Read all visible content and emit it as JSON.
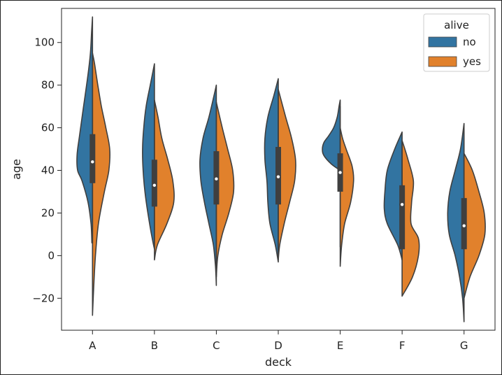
{
  "chart_data": {
    "type": "violin",
    "split": true,
    "title": "",
    "xlabel": "deck",
    "ylabel": "age",
    "categories": [
      "A",
      "B",
      "C",
      "D",
      "E",
      "F",
      "G"
    ],
    "ylim": [
      -35,
      116
    ],
    "yticks": [
      -20,
      0,
      20,
      40,
      60,
      80,
      100
    ],
    "ytick_labels": [
      "−20",
      "0",
      "20",
      "40",
      "60",
      "80",
      "100"
    ],
    "grid": false,
    "legend": {
      "title": "alive",
      "location": "top-right",
      "entries": [
        {
          "label": "no",
          "color": "#3274a1"
        },
        {
          "label": "yes",
          "color": "#e1812c"
        }
      ]
    },
    "series": [
      {
        "name": "no",
        "color": "#3274a1",
        "violins": [
          {
            "category": "A",
            "min": 6,
            "max": 112,
            "profile": [
              [
                6,
                0.02
              ],
              [
                15,
                0.05
              ],
              [
                25,
                0.15
              ],
              [
                35,
                0.35
              ],
              [
                40,
                0.5
              ],
              [
                47,
                0.52
              ],
              [
                55,
                0.45
              ],
              [
                65,
                0.35
              ],
              [
                75,
                0.25
              ],
              [
                85,
                0.15
              ],
              [
                95,
                0.07
              ],
              [
                105,
                0.03
              ],
              [
                112,
                0.0
              ]
            ]
          },
          {
            "category": "B",
            "min": 3,
            "max": 90,
            "profile": [
              [
                3,
                0.0
              ],
              [
                10,
                0.1
              ],
              [
                20,
                0.22
              ],
              [
                30,
                0.32
              ],
              [
                40,
                0.38
              ],
              [
                50,
                0.4
              ],
              [
                60,
                0.36
              ],
              [
                70,
                0.28
              ],
              [
                80,
                0.14
              ],
              [
                90,
                0.0
              ]
            ]
          },
          {
            "category": "C",
            "min": -14,
            "max": 80,
            "profile": [
              [
                -14,
                0.0
              ],
              [
                -5,
                0.03
              ],
              [
                5,
                0.1
              ],
              [
                15,
                0.25
              ],
              [
                25,
                0.4
              ],
              [
                35,
                0.52
              ],
              [
                45,
                0.55
              ],
              [
                55,
                0.45
              ],
              [
                65,
                0.25
              ],
              [
                75,
                0.08
              ],
              [
                80,
                0.0
              ]
            ]
          },
          {
            "category": "D",
            "min": -3,
            "max": 83,
            "profile": [
              [
                -3,
                0.0
              ],
              [
                5,
                0.1
              ],
              [
                15,
                0.28
              ],
              [
                25,
                0.35
              ],
              [
                35,
                0.38
              ],
              [
                45,
                0.45
              ],
              [
                55,
                0.45
              ],
              [
                65,
                0.35
              ],
              [
                75,
                0.15
              ],
              [
                83,
                0.0
              ]
            ]
          },
          {
            "category": "E",
            "min": 40,
            "max": 73,
            "profile": [
              [
                40,
                0.0
              ],
              [
                43,
                0.3
              ],
              [
                47,
                0.55
              ],
              [
                50,
                0.6
              ],
              [
                53,
                0.55
              ],
              [
                56,
                0.4
              ],
              [
                60,
                0.22
              ],
              [
                65,
                0.1
              ],
              [
                70,
                0.04
              ],
              [
                73,
                0.0
              ]
            ]
          },
          {
            "category": "F",
            "min": -2,
            "max": 58,
            "profile": [
              [
                -2,
                0.0
              ],
              [
                5,
                0.15
              ],
              [
                15,
                0.5
              ],
              [
                22,
                0.6
              ],
              [
                30,
                0.58
              ],
              [
                40,
                0.5
              ],
              [
                50,
                0.25
              ],
              [
                58,
                0.0
              ]
            ]
          },
          {
            "category": "G",
            "min": -31,
            "max": 62,
            "profile": [
              [
                -31,
                0.0
              ],
              [
                -20,
                0.05
              ],
              [
                -10,
                0.15
              ],
              [
                0,
                0.3
              ],
              [
                10,
                0.5
              ],
              [
                20,
                0.55
              ],
              [
                30,
                0.48
              ],
              [
                40,
                0.3
              ],
              [
                50,
                0.12
              ],
              [
                62,
                0.0
              ]
            ]
          }
        ]
      },
      {
        "name": "yes",
        "color": "#e1812c",
        "violins": [
          {
            "category": "A",
            "min": -28,
            "max": 95,
            "profile": [
              [
                -28,
                0.0
              ],
              [
                -15,
                0.04
              ],
              [
                0,
                0.1
              ],
              [
                15,
                0.2
              ],
              [
                30,
                0.4
              ],
              [
                40,
                0.55
              ],
              [
                50,
                0.58
              ],
              [
                60,
                0.45
              ],
              [
                70,
                0.3
              ],
              [
                80,
                0.18
              ],
              [
                90,
                0.07
              ],
              [
                95,
                0.0
              ]
            ]
          },
          {
            "category": "B",
            "min": -2,
            "max": 73,
            "profile": [
              [
                -2,
                0.0
              ],
              [
                5,
                0.1
              ],
              [
                15,
                0.42
              ],
              [
                25,
                0.65
              ],
              [
                35,
                0.62
              ],
              [
                45,
                0.45
              ],
              [
                55,
                0.25
              ],
              [
                65,
                0.12
              ],
              [
                73,
                0.0
              ]
            ]
          },
          {
            "category": "C",
            "min": -10,
            "max": 72,
            "profile": [
              [
                -10,
                0.0
              ],
              [
                0,
                0.05
              ],
              [
                10,
                0.2
              ],
              [
                20,
                0.42
              ],
              [
                30,
                0.58
              ],
              [
                40,
                0.55
              ],
              [
                50,
                0.38
              ],
              [
                60,
                0.2
              ],
              [
                72,
                0.0
              ]
            ]
          },
          {
            "category": "D",
            "min": -2,
            "max": 78,
            "profile": [
              [
                -2,
                0.0
              ],
              [
                5,
                0.05
              ],
              [
                15,
                0.2
              ],
              [
                25,
                0.38
              ],
              [
                35,
                0.55
              ],
              [
                45,
                0.58
              ],
              [
                55,
                0.45
              ],
              [
                65,
                0.25
              ],
              [
                78,
                0.0
              ]
            ]
          },
          {
            "category": "E",
            "min": -5,
            "max": 60,
            "profile": [
              [
                -5,
                0.0
              ],
              [
                5,
                0.05
              ],
              [
                15,
                0.15
              ],
              [
                25,
                0.35
              ],
              [
                35,
                0.45
              ],
              [
                42,
                0.4
              ],
              [
                50,
                0.2
              ],
              [
                55,
                0.08
              ],
              [
                60,
                0.0
              ]
            ]
          },
          {
            "category": "F",
            "min": -19,
            "max": 54,
            "profile": [
              [
                -19,
                0.0
              ],
              [
                -10,
                0.35
              ],
              [
                0,
                0.55
              ],
              [
                8,
                0.55
              ],
              [
                15,
                0.3
              ],
              [
                25,
                0.32
              ],
              [
                35,
                0.38
              ],
              [
                45,
                0.2
              ],
              [
                54,
                0.0
              ]
            ]
          },
          {
            "category": "G",
            "min": -20,
            "max": 48,
            "profile": [
              [
                -20,
                0.0
              ],
              [
                -10,
                0.2
              ],
              [
                0,
                0.5
              ],
              [
                10,
                0.7
              ],
              [
                20,
                0.68
              ],
              [
                30,
                0.5
              ],
              [
                40,
                0.28
              ],
              [
                48,
                0.0
              ]
            ]
          }
        ]
      }
    ],
    "box_summary": [
      {
        "category": "A",
        "q1": 34,
        "median": 44,
        "q3": 57,
        "whisker_low": 6,
        "whisker_high": 95
      },
      {
        "category": "B",
        "q1": 23,
        "median": 33,
        "q3": 45,
        "whisker_low": 3,
        "whisker_high": 73
      },
      {
        "category": "C",
        "q1": 24,
        "median": 36,
        "q3": 49,
        "whisker_low": -8,
        "whisker_high": 72
      },
      {
        "category": "D",
        "q1": 24,
        "median": 37,
        "q3": 51,
        "whisker_low": 1,
        "whisker_high": 78
      },
      {
        "category": "E",
        "q1": 30,
        "median": 39,
        "q3": 48,
        "whisker_low": 4,
        "whisker_high": 70
      },
      {
        "category": "F",
        "q1": 3,
        "median": 24,
        "q3": 33,
        "whisker_low": -2,
        "whisker_high": 54
      },
      {
        "category": "G",
        "q1": 3,
        "median": 14,
        "q3": 27,
        "whisker_low": -19,
        "whisker_high": 48
      }
    ]
  }
}
